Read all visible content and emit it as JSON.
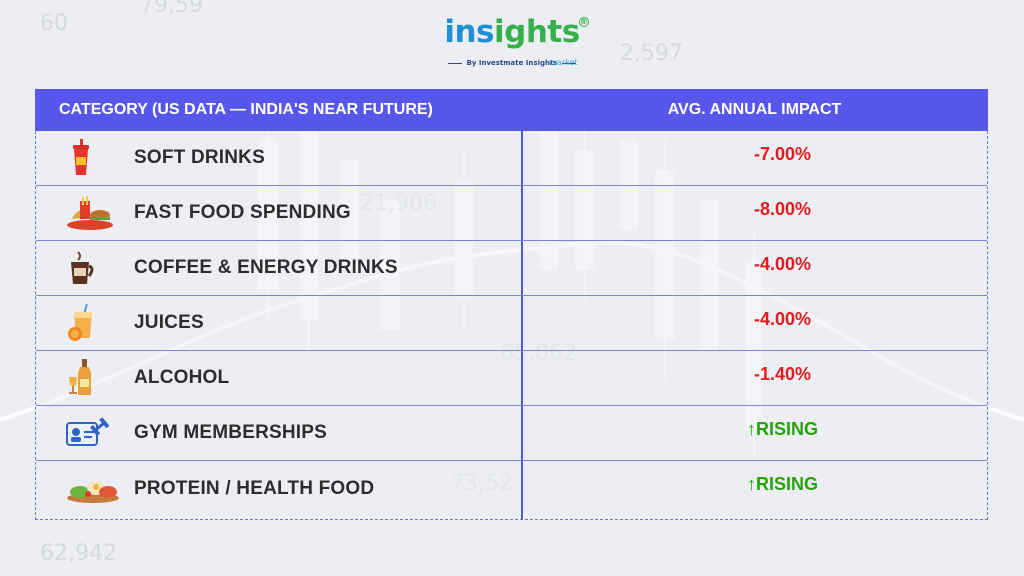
{
  "logo": {
    "word_part1": "ins",
    "word_part2": "ights",
    "sub": "market",
    "byline": "By Investmate Insights"
  },
  "colors": {
    "header_bg": "#5757ec",
    "negative": "#e21b1b",
    "positive": "#27a20c"
  },
  "table": {
    "header_category": "CATEGORY (US DATA — INDIA'S NEAR FUTURE)",
    "header_impact": "AVG. ANNUAL IMPACT",
    "rows": [
      {
        "icon": "soft-drink-icon",
        "label": "SOFT DRINKS",
        "impact": "-7.00%",
        "trend": "negative"
      },
      {
        "icon": "fast-food-icon",
        "label": "FAST FOOD SPENDING",
        "impact": "-8.00%",
        "trend": "negative"
      },
      {
        "icon": "coffee-icon",
        "label": "COFFEE & ENERGY DRINKS",
        "impact": "-4.00%",
        "trend": "negative"
      },
      {
        "icon": "juice-icon",
        "label": "JUICES",
        "impact": "-4.00%",
        "trend": "negative"
      },
      {
        "icon": "alcohol-icon",
        "label": "ALCOHOL",
        "impact": "-1.40%",
        "trend": "negative"
      },
      {
        "icon": "gym-icon",
        "label": "GYM MEMBERSHIPS",
        "impact": "↑RISING",
        "trend": "positive"
      },
      {
        "icon": "health-food-icon",
        "label": "PROTEIN / HEALTH FOOD",
        "impact": "↑RISING",
        "trend": "positive"
      }
    ]
  }
}
